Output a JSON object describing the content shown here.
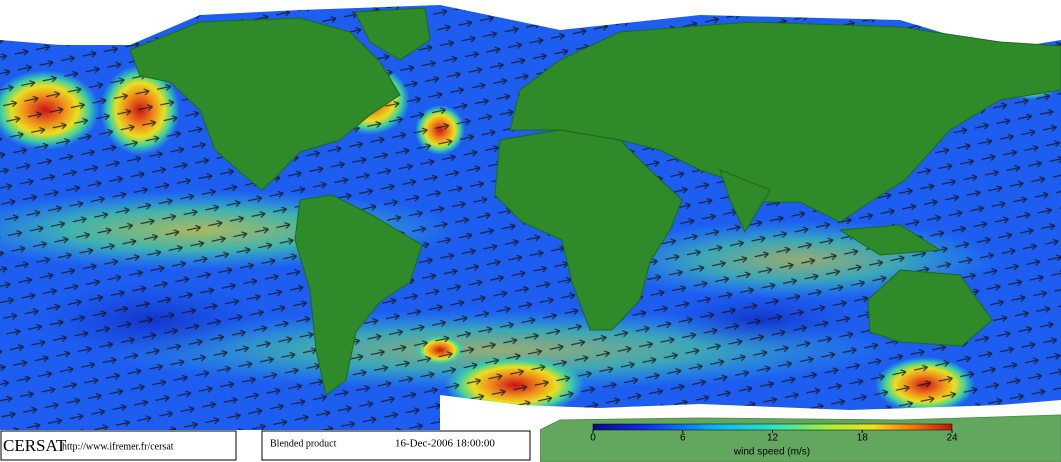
{
  "header": {
    "logo": "CERSAT",
    "url": "http://www.ifremer.fr/cersat",
    "product": "Blended product",
    "date": "16-Dec-2006 18:00:00"
  },
  "colorbar": {
    "label": "wind speed (m/s)",
    "lim": [
      0,
      24
    ],
    "ticks": [
      0,
      6,
      12,
      18,
      24
    ]
  }
}
